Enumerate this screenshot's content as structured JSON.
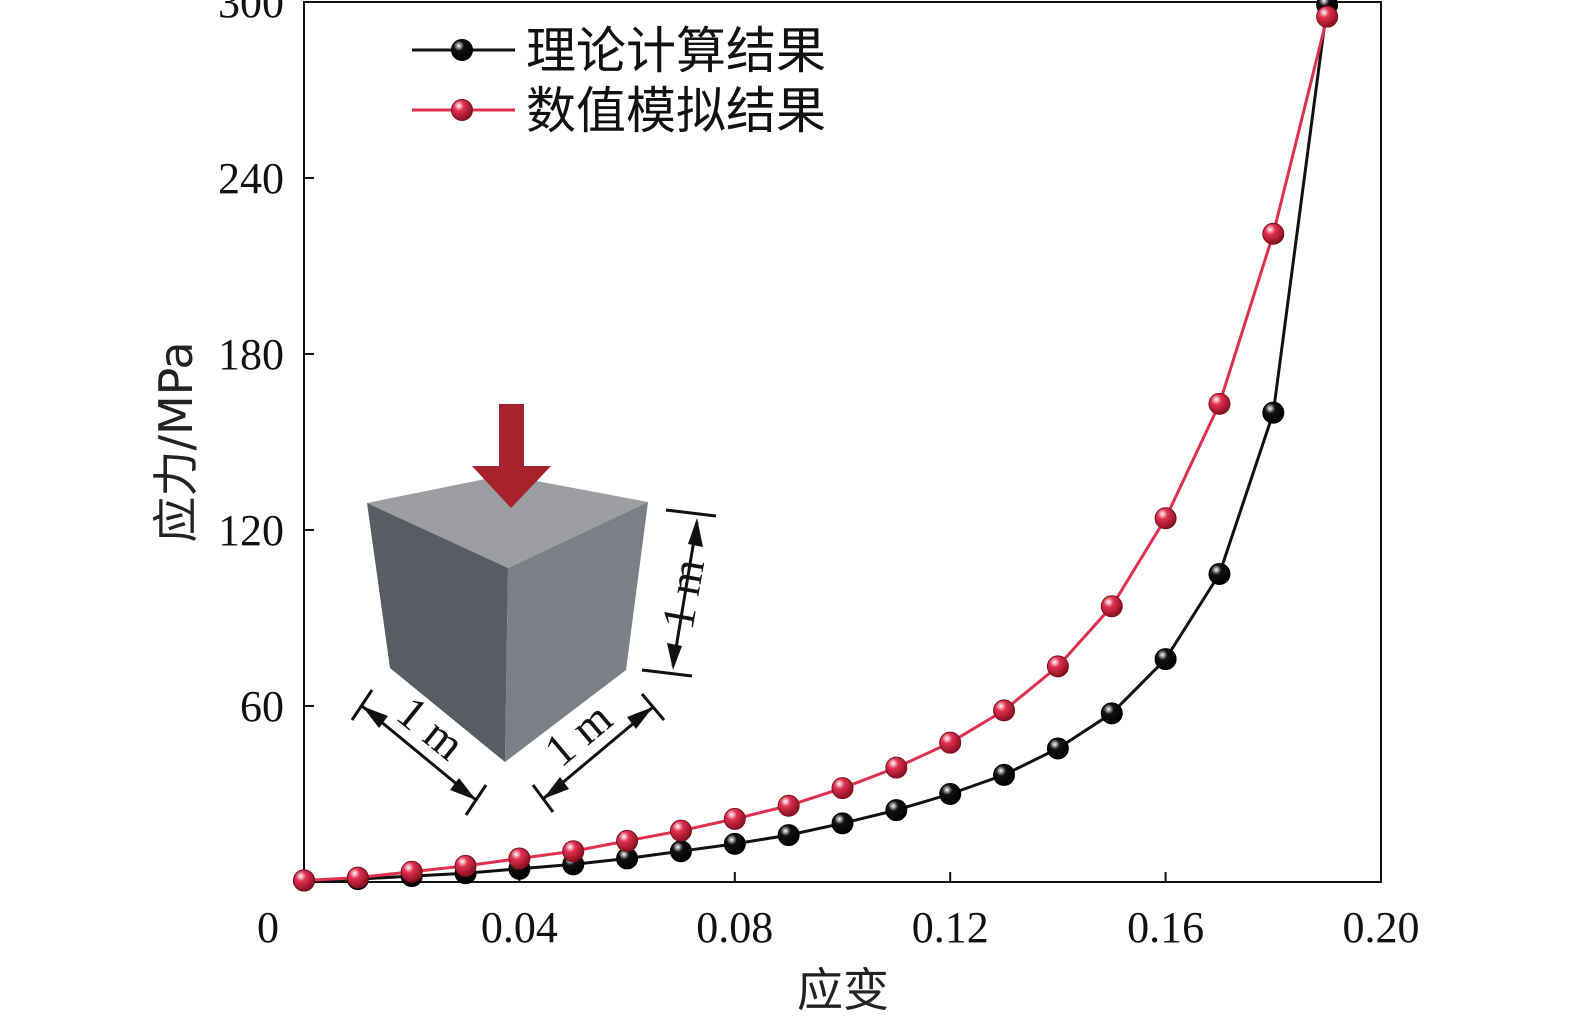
{
  "chart_data": {
    "type": "line",
    "title": "",
    "xlabel": "应变",
    "ylabel": "应力/MPa",
    "xlim": [
      0,
      0.2
    ],
    "ylim": [
      0,
      300
    ],
    "xticks": [
      0,
      0.04,
      0.08,
      0.12,
      0.16,
      0.2
    ],
    "xtick_labels": [
      "0",
      "0.04",
      "0.08",
      "0.12",
      "0.16",
      "0.20"
    ],
    "yticks": [
      60,
      120,
      180,
      240,
      300
    ],
    "ytick_labels": [
      "60",
      "120",
      "180",
      "240",
      "300"
    ],
    "grid": false,
    "legend": "top-left",
    "series": [
      {
        "name": "理论计算结果",
        "color": "#111111",
        "points": [
          [
            0.0,
            0.5
          ],
          [
            0.01,
            1.0
          ],
          [
            0.02,
            2.0
          ],
          [
            0.03,
            3.0
          ],
          [
            0.04,
            4.5
          ],
          [
            0.05,
            6.0
          ],
          [
            0.06,
            8.0
          ],
          [
            0.07,
            10.5
          ],
          [
            0.08,
            13.0
          ],
          [
            0.09,
            16.0
          ],
          [
            0.1,
            20.0
          ],
          [
            0.11,
            24.5
          ],
          [
            0.12,
            30.0
          ],
          [
            0.13,
            36.5
          ],
          [
            0.14,
            45.5
          ],
          [
            0.15,
            57.5
          ],
          [
            0.16,
            76.0
          ],
          [
            0.17,
            105.0
          ],
          [
            0.18,
            160.0
          ],
          [
            0.19,
            299.0
          ]
        ]
      },
      {
        "name": "数值模拟结果",
        "color": "#e03050",
        "points": [
          [
            0.0,
            0.5
          ],
          [
            0.01,
            1.5
          ],
          [
            0.02,
            3.5
          ],
          [
            0.03,
            5.5
          ],
          [
            0.04,
            8.0
          ],
          [
            0.05,
            10.5
          ],
          [
            0.06,
            14.0
          ],
          [
            0.07,
            17.5
          ],
          [
            0.08,
            21.5
          ],
          [
            0.09,
            26.0
          ],
          [
            0.1,
            32.0
          ],
          [
            0.11,
            39.0
          ],
          [
            0.12,
            47.5
          ],
          [
            0.13,
            58.5
          ],
          [
            0.14,
            73.5
          ],
          [
            0.15,
            94.0
          ],
          [
            0.16,
            124.0
          ],
          [
            0.17,
            163.0
          ],
          [
            0.18,
            221.0
          ],
          [
            0.19,
            295.0
          ]
        ]
      }
    ]
  },
  "inset": {
    "label_height": "1 m",
    "label_width": "1 m",
    "label_depth": "1 m",
    "cube_colors": {
      "top": "#9c9ea2",
      "left": "#595c63",
      "right": "#7c7f86"
    },
    "arrow_color": "#a6232b"
  }
}
